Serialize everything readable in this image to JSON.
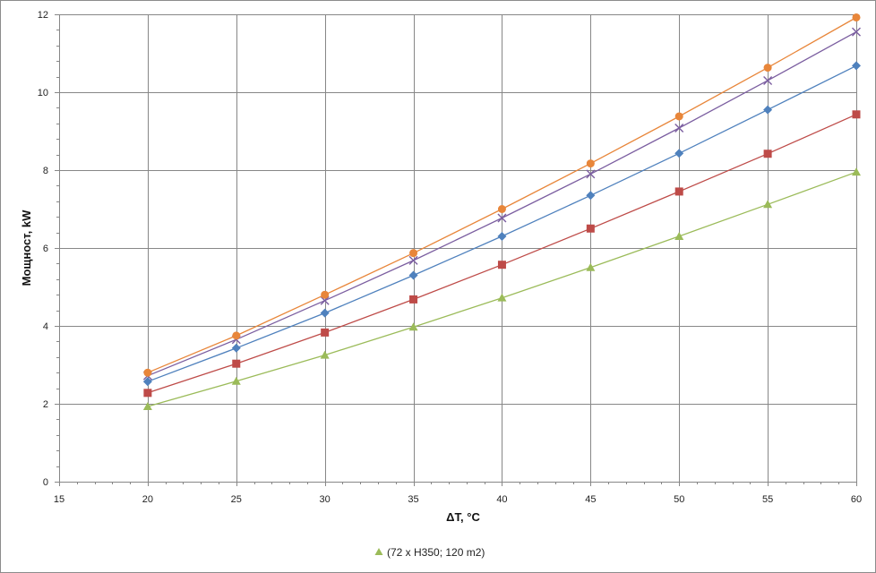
{
  "chart_data": {
    "type": "line",
    "xlabel": "ΔT, °C",
    "ylabel": "Мощност, kW",
    "xlim": [
      15,
      60
    ],
    "ylim": [
      0,
      12
    ],
    "x_ticks": [
      15,
      20,
      25,
      30,
      35,
      40,
      45,
      50,
      55,
      60
    ],
    "y_ticks": [
      0,
      2,
      4,
      6,
      8,
      10,
      12
    ],
    "grid": true,
    "x": [
      20,
      25,
      30,
      35,
      40,
      45,
      50,
      55,
      60
    ],
    "series": [
      {
        "color": "#e8863a",
        "marker": "circle",
        "values": [
          2.8,
          3.75,
          4.8,
          5.87,
          7.0,
          8.17,
          9.38,
          10.63,
          11.92
        ]
      },
      {
        "color": "#7b5ea0",
        "marker": "x",
        "values": [
          2.72,
          3.65,
          4.65,
          5.68,
          6.77,
          7.9,
          9.08,
          10.3,
          11.55
        ]
      },
      {
        "color": "#4f81bd",
        "marker": "diamond",
        "values": [
          2.57,
          3.43,
          4.33,
          5.3,
          6.3,
          7.35,
          8.43,
          9.55,
          10.68
        ]
      },
      {
        "color": "#be4b48",
        "marker": "square",
        "values": [
          2.28,
          3.03,
          3.83,
          4.68,
          5.57,
          6.5,
          7.45,
          8.42,
          9.43
        ]
      },
      {
        "name": "(72 x H350; 120 m2)",
        "color": "#9bbb59",
        "marker": "triangle",
        "values": [
          1.93,
          2.58,
          3.25,
          3.97,
          4.72,
          5.5,
          6.3,
          7.12,
          7.95
        ]
      }
    ],
    "legend": {
      "placement": "bottom",
      "entries": [
        "(72 x H350; 120 m2)"
      ]
    }
  }
}
